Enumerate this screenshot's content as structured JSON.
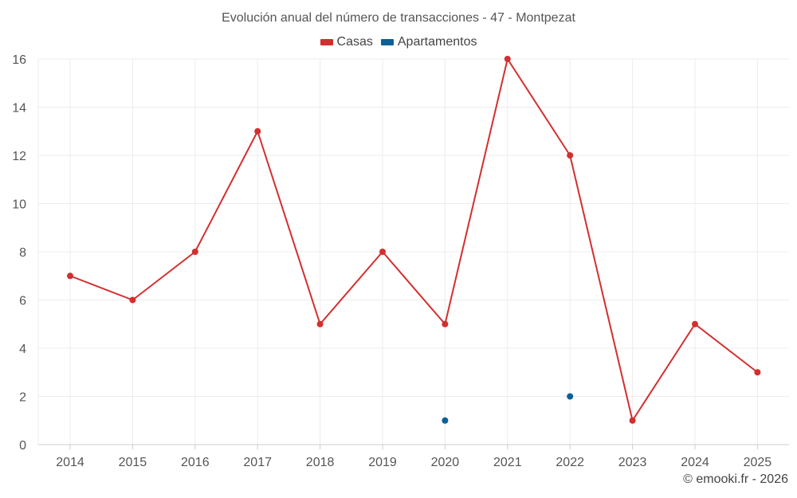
{
  "title": "Evolución anual del número de transacciones - 47 - Montpezat",
  "credit": "© emooki.fr - 2026",
  "colors": {
    "casas": "#d32f2f",
    "apartamentos": "#0d5f99",
    "grid": "#ececec",
    "axis": "#cccccc",
    "tick_text": "#555555"
  },
  "chart_data": {
    "type": "line",
    "title": "Evolución anual del número de transacciones - 47 - Montpezat",
    "xlabel": "",
    "ylabel": "",
    "categories": [
      "2014",
      "2015",
      "2016",
      "2017",
      "2018",
      "2019",
      "2020",
      "2021",
      "2022",
      "2023",
      "2024",
      "2025"
    ],
    "yticks": [
      0,
      2,
      4,
      6,
      8,
      10,
      12,
      14,
      16
    ],
    "ylim": [
      0,
      16
    ],
    "grid": true,
    "legend_position": "top-center",
    "series": [
      {
        "name": "Casas",
        "color": "#d32f2f",
        "values": [
          7,
          6,
          8,
          13,
          5,
          8,
          5,
          16,
          12,
          1,
          5,
          3
        ]
      },
      {
        "name": "Apartamentos",
        "color": "#0d5f99",
        "values": [
          null,
          null,
          null,
          null,
          null,
          null,
          1,
          null,
          2,
          null,
          null,
          null
        ]
      }
    ]
  }
}
